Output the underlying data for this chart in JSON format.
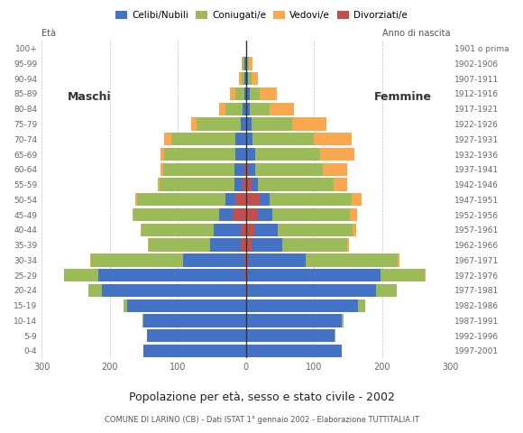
{
  "age_groups": [
    "0-4",
    "5-9",
    "10-14",
    "15-19",
    "20-24",
    "25-29",
    "30-34",
    "35-39",
    "40-44",
    "45-49",
    "50-54",
    "55-59",
    "60-64",
    "65-69",
    "70-74",
    "75-79",
    "80-84",
    "85-89",
    "90-94",
    "95-99",
    "100+"
  ],
  "birth_years": [
    "1997-2001",
    "1992-1996",
    "1987-1991",
    "1982-1986",
    "1977-1981",
    "1972-1976",
    "1967-1971",
    "1962-1966",
    "1957-1961",
    "1952-1956",
    "1947-1951",
    "1942-1946",
    "1937-1941",
    "1932-1936",
    "1927-1931",
    "1922-1926",
    "1917-1921",
    "1912-1916",
    "1907-1911",
    "1902-1906",
    "1901 o prima"
  ],
  "males": {
    "celibe": [
      150,
      145,
      150,
      175,
      210,
      215,
      90,
      45,
      40,
      20,
      15,
      12,
      15,
      15,
      15,
      8,
      5,
      3,
      2,
      2,
      0
    ],
    "coniugato": [
      0,
      0,
      2,
      5,
      20,
      50,
      135,
      90,
      105,
      125,
      130,
      110,
      105,
      105,
      95,
      65,
      25,
      12,
      5,
      3,
      0
    ],
    "vedovo": [
      0,
      0,
      0,
      0,
      0,
      0,
      1,
      1,
      1,
      2,
      2,
      2,
      3,
      5,
      10,
      8,
      10,
      8,
      3,
      2,
      0
    ],
    "divorziato": [
      0,
      0,
      0,
      0,
      1,
      2,
      3,
      8,
      8,
      20,
      15,
      5,
      2,
      0,
      0,
      0,
      0,
      0,
      0,
      0,
      0
    ]
  },
  "females": {
    "nubile": [
      140,
      130,
      140,
      165,
      190,
      195,
      85,
      45,
      35,
      20,
      15,
      10,
      10,
      12,
      10,
      8,
      5,
      5,
      3,
      2,
      0
    ],
    "coniugata": [
      0,
      1,
      3,
      10,
      30,
      65,
      135,
      95,
      110,
      115,
      120,
      110,
      100,
      95,
      90,
      60,
      30,
      15,
      5,
      2,
      0
    ],
    "vedova": [
      0,
      0,
      0,
      0,
      0,
      1,
      2,
      3,
      5,
      10,
      15,
      20,
      35,
      50,
      55,
      50,
      35,
      25,
      10,
      5,
      2
    ],
    "divorziata": [
      0,
      0,
      0,
      0,
      1,
      2,
      3,
      8,
      12,
      18,
      20,
      8,
      3,
      2,
      0,
      0,
      0,
      0,
      0,
      0,
      0
    ]
  },
  "colors": {
    "celibe": "#4472C4",
    "coniugato": "#9BBB59",
    "vedovo": "#FAA84F",
    "divorziato": "#C0504D"
  },
  "xlim": 300,
  "title": "Popolazione per età, sesso e stato civile - 2002",
  "subtitle": "COMUNE DI LARINO (CB) - Dati ISTAT 1° gennaio 2002 - Elaborazione TUTTITALIA.IT",
  "ylabel_left": "Età",
  "ylabel_right": "Anno di nascita",
  "xlabel_left": "Maschi",
  "xlabel_right": "Femmine",
  "legend_labels": [
    "Celibi/Nubili",
    "Coniugati/e",
    "Vedovi/e",
    "Divorziati/e"
  ],
  "legend_colors": [
    "#4472C4",
    "#9BBB59",
    "#FAA84F",
    "#C0504D"
  ],
  "background_color": "#ffffff",
  "grid_color": "#bbbbbb"
}
